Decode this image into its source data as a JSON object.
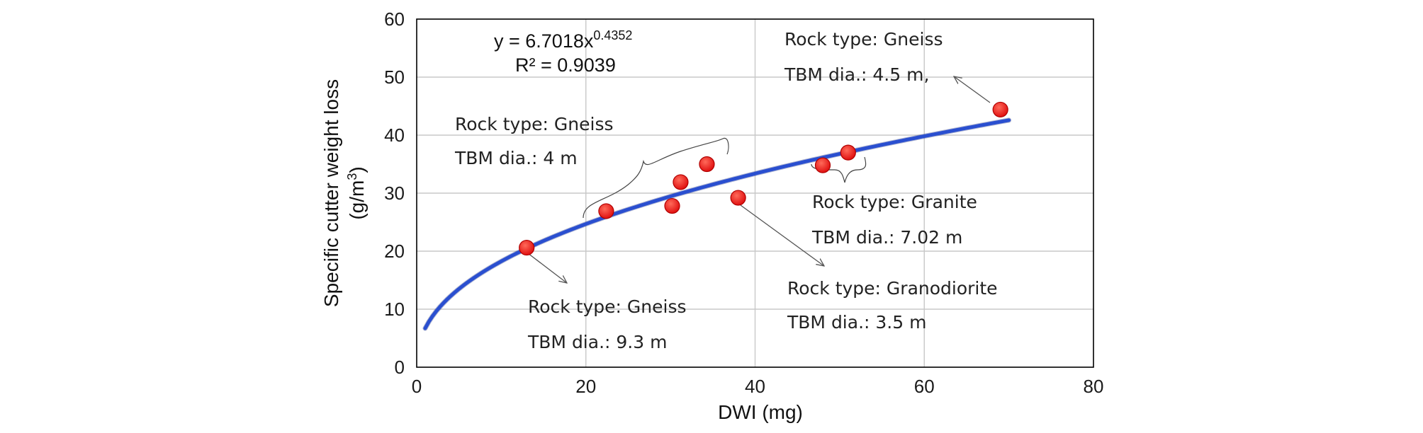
{
  "chart_data": {
    "type": "scatter",
    "xlabel": "DWI (mg)",
    "ylabel_line1": "Specific cutter weight loss",
    "ylabel_line2_base": "(g/m",
    "ylabel_line2_sup": "3",
    "ylabel_line2_end": ")",
    "xlim": [
      0,
      80
    ],
    "ylim": [
      0,
      60
    ],
    "x_ticks": [
      0,
      20,
      40,
      60,
      80
    ],
    "y_ticks": [
      0,
      10,
      20,
      30,
      40,
      50,
      60
    ],
    "grid": true,
    "series": [
      {
        "type": "scatter",
        "color": "#ee1111",
        "points": [
          {
            "x": 13.0,
            "y": 20.6
          },
          {
            "x": 22.4,
            "y": 26.9
          },
          {
            "x": 30.2,
            "y": 27.8
          },
          {
            "x": 31.2,
            "y": 31.9
          },
          {
            "x": 34.3,
            "y": 35.0
          },
          {
            "x": 38.0,
            "y": 29.2
          },
          {
            "x": 48.0,
            "y": 34.8
          },
          {
            "x": 51.0,
            "y": 37.0
          },
          {
            "x": 69.0,
            "y": 44.4
          }
        ]
      },
      {
        "type": "line",
        "color": "#2a4fd0",
        "fit": {
          "kind": "power",
          "a": 6.7018,
          "b": 0.4352,
          "x_from": 1,
          "x_to": 70
        }
      }
    ],
    "equation": {
      "base": "y = 6.7018x",
      "exponent": "0.4352",
      "r2": "R² = 0.9039"
    },
    "annotations": [
      {
        "line1": "Rock type: Gneiss",
        "line2": "TBM dia.: 4 m"
      },
      {
        "line1": "Rock type: Gneiss",
        "line2": "TBM dia.: 4.5 m,"
      },
      {
        "line1": "Rock type: Granite",
        "line2": "TBM dia.: 7.02 m"
      },
      {
        "line1": "Rock type: Granodiorite",
        "line2": "TBM dia.: 3.5 m"
      },
      {
        "line1": "Rock type: Gneiss",
        "line2": "TBM dia.: 9.3 m"
      }
    ]
  }
}
